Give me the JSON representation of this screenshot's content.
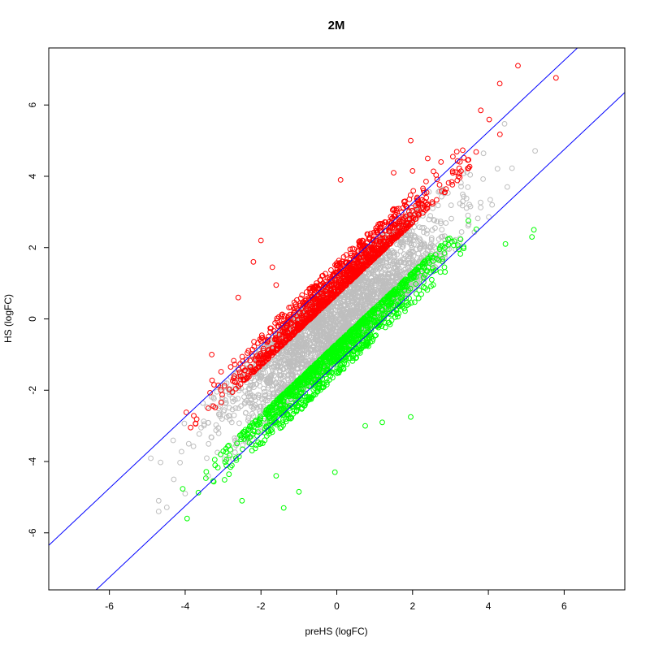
{
  "chart_data": {
    "type": "scatter",
    "title": "2M",
    "xlabel": "preHS (logFC)",
    "ylabel": "HS (logFC)",
    "xlim": [
      -7.6,
      7.6
    ],
    "ylim": [
      -7.6,
      7.6
    ],
    "x_ticks": [
      -6,
      -4,
      -2,
      0,
      2,
      4,
      6
    ],
    "y_ticks": [
      -6,
      -4,
      -2,
      0,
      2,
      4,
      6
    ],
    "x_tick_labels": [
      "-6",
      "-4",
      "-2",
      "0",
      "2",
      "4",
      "6"
    ],
    "y_tick_labels": [
      "-6",
      "-4",
      "-2",
      "0",
      "2",
      "4",
      "6"
    ],
    "grid": false,
    "reference_lines": [
      {
        "slope": 1,
        "intercept": 1.25,
        "color": "#0000ff"
      },
      {
        "slope": 1,
        "intercept": -1.25,
        "color": "#0000ff"
      }
    ],
    "point_groups": [
      {
        "group": "unchanged",
        "color": "#bebebe",
        "cloud_center": [
          0,
          0
        ],
        "spread_along_diagonal": 1.3,
        "offset_range": [
          -1.2,
          1.2
        ],
        "count_approx": 3000
      },
      {
        "group": "up",
        "color": "#ff0000",
        "offset_range": [
          0.7,
          1.6
        ],
        "count_approx": 1200
      },
      {
        "group": "down",
        "color": "#00ff00",
        "offset_range": [
          -1.6,
          -0.7
        ],
        "count_approx": 1200
      }
    ],
    "outliers": {
      "up": [
        [
          4.78,
          7.1
        ],
        [
          4.3,
          6.6
        ],
        [
          3.8,
          5.85
        ],
        [
          1.95,
          5.0
        ],
        [
          2.4,
          4.5
        ],
        [
          2.75,
          4.4
        ],
        [
          0.1,
          3.9
        ],
        [
          1.5,
          4.1
        ],
        [
          2.0,
          4.15
        ],
        [
          -2.0,
          2.2
        ],
        [
          -2.2,
          1.6
        ],
        [
          -1.7,
          1.45
        ],
        [
          -2.6,
          0.6
        ],
        [
          -1.6,
          0.95
        ],
        [
          -3.3,
          -1.0
        ]
      ],
      "down": [
        [
          5.2,
          2.5
        ],
        [
          5.15,
          2.3
        ],
        [
          4.45,
          2.1
        ],
        [
          -0.05,
          -4.3
        ],
        [
          -1.0,
          -4.85
        ],
        [
          -1.4,
          -5.3
        ],
        [
          -3.95,
          -5.6
        ],
        [
          0.75,
          -3.0
        ],
        [
          1.95,
          -2.75
        ],
        [
          1.2,
          -2.9
        ],
        [
          -1.6,
          -4.4
        ],
        [
          -2.5,
          -5.1
        ]
      ],
      "unchanged": [
        [
          -4.7,
          -5.4
        ],
        [
          -4.7,
          -5.1
        ],
        [
          4.5,
          3.7
        ],
        [
          4.1,
          3.2
        ],
        [
          -4.3,
          -4.5
        ],
        [
          -4.0,
          -4.9
        ]
      ]
    }
  }
}
